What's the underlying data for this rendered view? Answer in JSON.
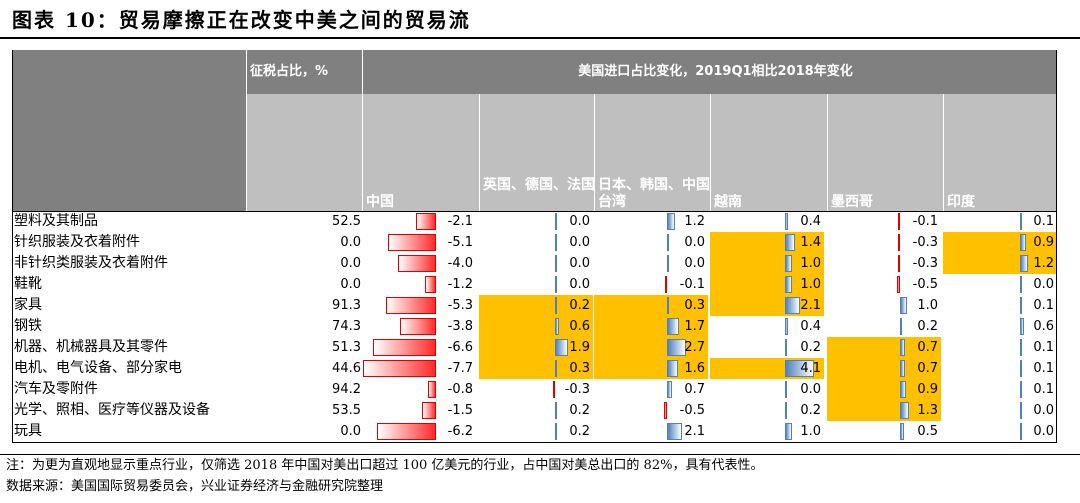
{
  "title": "图表 10：贸易摩擦正在改变中美之间的贸易流",
  "chart_data": {
    "type": "table",
    "header_tax": "征税占比，%",
    "header_change": "美国进口占比变化，2019Q1相比2018年变化",
    "countries": [
      "中国",
      "英国、德国、法国",
      "日本、韩国、中国台湾",
      "越南",
      "墨西哥",
      "印度"
    ],
    "rows": [
      {
        "label": "塑料及其制品",
        "tax": "52.5",
        "values": [
          "-2.1",
          "0.0",
          "1.2",
          "0.4",
          "-0.1",
          "0.1"
        ],
        "highlight": [
          false,
          false,
          false,
          false,
          false,
          false
        ]
      },
      {
        "label": "针织服装及衣着附件",
        "tax": "0.0",
        "values": [
          "-5.1",
          "0.0",
          "0.0",
          "1.4",
          "-0.3",
          "0.9"
        ],
        "highlight": [
          false,
          false,
          false,
          true,
          false,
          true
        ]
      },
      {
        "label": "非针织类服装及衣着附件",
        "tax": "0.0",
        "values": [
          "-4.0",
          "0.0",
          "0.0",
          "1.0",
          "-0.3",
          "1.2"
        ],
        "highlight": [
          false,
          false,
          false,
          true,
          false,
          true
        ]
      },
      {
        "label": "鞋靴",
        "tax": "0.0",
        "values": [
          "-1.2",
          "0.0",
          "-0.1",
          "1.0",
          "-0.5",
          "0.0"
        ],
        "highlight": [
          false,
          false,
          false,
          true,
          false,
          false
        ]
      },
      {
        "label": "家具",
        "tax": "91.3",
        "values": [
          "-5.3",
          "0.2",
          "0.3",
          "2.1",
          "1.0",
          "0.1"
        ],
        "highlight": [
          false,
          true,
          true,
          true,
          false,
          false
        ]
      },
      {
        "label": "钢铁",
        "tax": "74.3",
        "values": [
          "-3.8",
          "0.6",
          "1.7",
          "0.4",
          "0.2",
          "0.6"
        ],
        "highlight": [
          false,
          true,
          true,
          false,
          false,
          false
        ]
      },
      {
        "label": "机器、机械器具及其零件",
        "tax": "51.3",
        "values": [
          "-6.6",
          "1.9",
          "2.7",
          "0.2",
          "0.7",
          "0.1"
        ],
        "highlight": [
          false,
          true,
          true,
          false,
          true,
          false
        ]
      },
      {
        "label": "电机、电气设备、部分家电",
        "tax": "44.6",
        "values": [
          "-7.7",
          "0.3",
          "1.6",
          "4.1",
          "0.7",
          "0.1"
        ],
        "highlight": [
          false,
          true,
          true,
          true,
          true,
          false
        ]
      },
      {
        "label": "汽车及零附件",
        "tax": "94.2",
        "values": [
          "-0.8",
          "-0.3",
          "0.7",
          "0.0",
          "0.9",
          "0.1"
        ],
        "highlight": [
          false,
          false,
          false,
          false,
          true,
          false
        ]
      },
      {
        "label": "光学、照相、医疗等仪器及设备",
        "tax": "53.5",
        "values": [
          "-1.5",
          "0.2",
          "-0.5",
          "0.2",
          "1.3",
          "0.0"
        ],
        "highlight": [
          false,
          false,
          false,
          false,
          true,
          false
        ]
      },
      {
        "label": "玩具",
        "tax": "0.0",
        "values": [
          "-6.2",
          "0.2",
          "2.1",
          "1.0",
          "0.5",
          "0.0"
        ],
        "highlight": [
          false,
          false,
          false,
          false,
          false,
          false
        ]
      }
    ],
    "colors": {
      "highlight": "#ffc000",
      "negative": "#ff0000",
      "positive": "#4f81bd",
      "header_dark": "#808080",
      "header_light": "#bfbfbf"
    }
  },
  "notes": {
    "note": "注：为更为直观地显示重点行业，仅筛选 2018 年中国对美出口超过 100 亿美元的行业，占中国对美总出口的 82%，具有代表性。",
    "source": "数据来源：美国国际贸易委员会，兴业证券经济与金融研究院整理"
  }
}
